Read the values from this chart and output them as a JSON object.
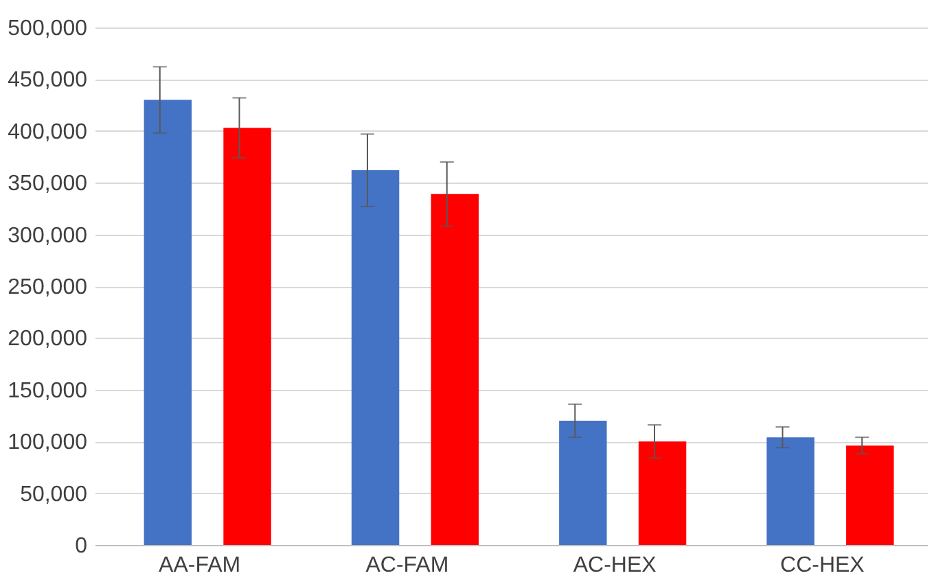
{
  "chart_data": {
    "type": "bar",
    "categories": [
      "AA-FAM",
      "AC-FAM",
      "AC-HEX",
      "CC-HEX"
    ],
    "series": [
      {
        "color": "#4472c4",
        "values": [
          430000,
          362000,
          120000,
          104000
        ],
        "errors": [
          32000,
          35000,
          16000,
          10000
        ]
      },
      {
        "color": "#ff0000",
        "values": [
          403000,
          339000,
          100000,
          96000
        ],
        "errors": [
          29000,
          31000,
          16000,
          8000
        ]
      }
    ],
    "ylim": [
      0,
      500000
    ],
    "yticks": [
      0,
      {
        "value": 50000,
        "label": "50,000"
      },
      {
        "value": 100000,
        "label": "100,000"
      },
      {
        "value": 150000,
        "label": "150,000"
      },
      {
        "value": 200000,
        "label": "200,000"
      },
      {
        "value": 250000,
        "label": "250,000"
      },
      {
        "value": 300000,
        "label": "300,000"
      },
      {
        "value": 350000,
        "label": "350,000"
      },
      {
        "value": 400000,
        "label": "400,000"
      },
      {
        "value": 450000,
        "label": "450,000"
      },
      {
        "value": 500000,
        "label": "500,000"
      }
    ],
    "grid": "y",
    "legend": false
  }
}
